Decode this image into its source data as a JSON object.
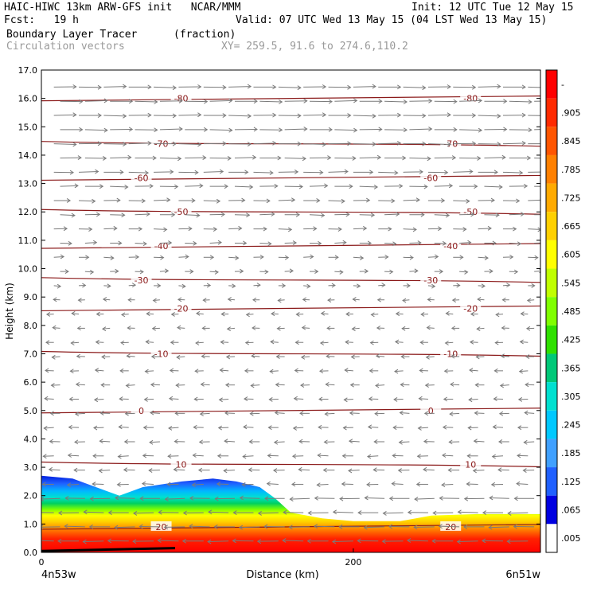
{
  "header": {
    "line1_left": "HAIC-HIWC 13km ARW-GFS init   NCAR/MMM",
    "line1_right": "Init: 12 UTC Tue 12 May 15",
    "line2_left": "Fcst:   19 h",
    "line2_right": "Valid: 07 UTC Wed 13 May 15 (04 LST Wed 13 May 15)",
    "line3_field": "Boundary Layer Tracer",
    "line3_units": "(fraction)",
    "line4_vectors": "Circulation vectors",
    "line4_xy": "XY= 259.5, 91.6 to 274.6,110.2"
  },
  "axes": {
    "ylabel": "Height (km)",
    "xlabel": "Distance (km)",
    "left_endpoint": "4n53w",
    "right_endpoint": "6n51w"
  },
  "colorbar": {
    "labels": [
      "-",
      ".905",
      ".845",
      ".785",
      ".725",
      ".665",
      ".605",
      ".545",
      ".485",
      ".425",
      ".365",
      ".305",
      ".245",
      ".185",
      ".125",
      ".065",
      ".005"
    ],
    "colors": [
      "#ff0000",
      "#ff2a00",
      "#ff5500",
      "#ff8000",
      "#ffaa00",
      "#ffd000",
      "#ffff00",
      "#c0ff00",
      "#7fff00",
      "#2fe000",
      "#00c878",
      "#00e0d0",
      "#00c8ff",
      "#40a0ff",
      "#2060ff",
      "#0000e0",
      "#ffffff"
    ]
  },
  "chart_data": {
    "type": "heatmap",
    "xlim": [
      0,
      320
    ],
    "ylim": [
      0,
      17
    ],
    "x_ticks": [
      0,
      200
    ],
    "y_ticks": [
      "0.0",
      "1.0",
      "2.0",
      "3.0",
      "4.0",
      "5.0",
      "6.0",
      "7.0",
      "8.0",
      "9.0",
      "10.0",
      "11.0",
      "12.0",
      "13.0",
      "14.0",
      "15.0",
      "16.0",
      "17.0"
    ],
    "temperature_contours": [
      {
        "label": "-80",
        "y": 16.0
      },
      {
        "label": "-70",
        "y": 14.4
      },
      {
        "label": "-60",
        "y": 13.2
      },
      {
        "label": "-50",
        "y": 12.0
      },
      {
        "label": "-40",
        "y": 10.8
      },
      {
        "label": "-30",
        "y": 9.6
      },
      {
        "label": "-20",
        "y": 8.6
      },
      {
        "label": "-10",
        "y": 7.0
      },
      {
        "label": "0",
        "y": 5.0
      },
      {
        "label": "10",
        "y": 3.1
      },
      {
        "label": "20",
        "y": 0.9
      }
    ],
    "tracer_top_km": [
      [
        0,
        2.7
      ],
      [
        20,
        2.6
      ],
      [
        40,
        2.2
      ],
      [
        50,
        2.0
      ],
      [
        65,
        2.3
      ],
      [
        90,
        2.5
      ],
      [
        110,
        2.6
      ],
      [
        125,
        2.5
      ],
      [
        140,
        2.3
      ],
      [
        150,
        1.9
      ],
      [
        160,
        1.4
      ],
      [
        180,
        1.2
      ],
      [
        200,
        1.1
      ],
      [
        230,
        1.1
      ],
      [
        250,
        1.3
      ],
      [
        280,
        1.35
      ],
      [
        320,
        1.35
      ]
    ],
    "wind_direction": {
      "upper": "westerly (to right)",
      "lower": "easterly (to left)",
      "reversal_height_km": 9.3
    }
  }
}
